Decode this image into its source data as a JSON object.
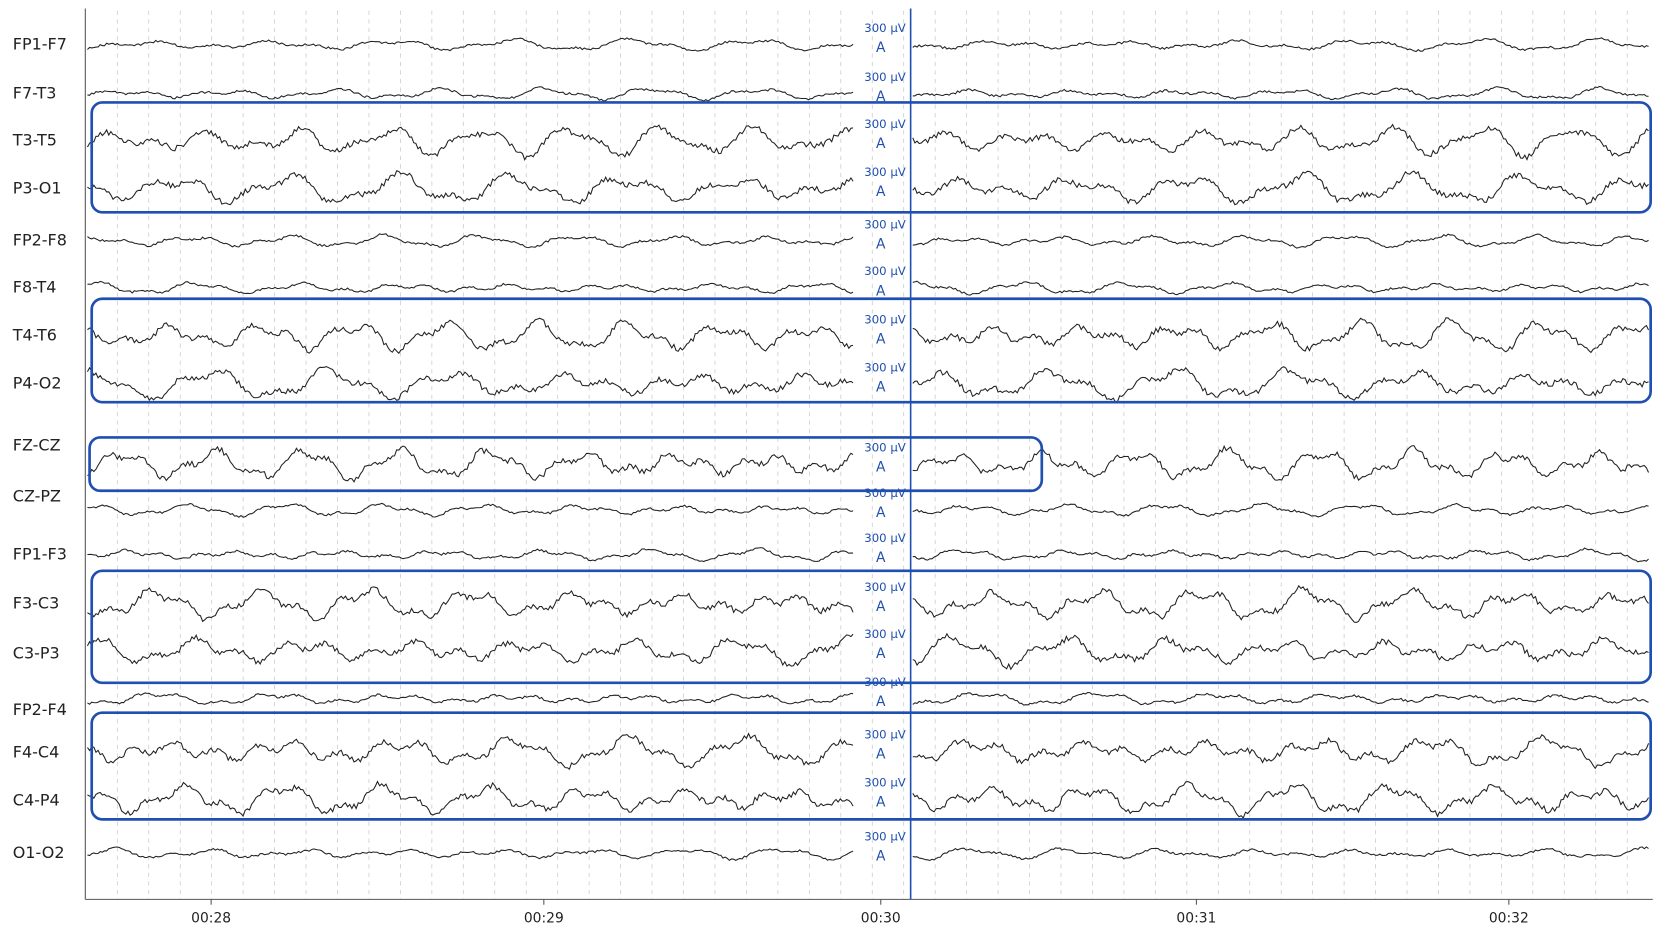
{
  "channels": [
    "FP1-F7",
    "F7-T3",
    "T3-T5",
    "P3-O1",
    "FP2-F8",
    "F8-T4",
    "T4-T6",
    "P4-O2",
    "FZ-CZ",
    "CZ-PZ",
    "FP1-F3",
    "F3-C3",
    "C3-P3",
    "FP2-F4",
    "F4-C4",
    "C4-P4",
    "O1-O2"
  ],
  "scale_label": "300 µV",
  "marker_label": "A",
  "time_axis": [
    "00:28",
    "00:29",
    "00:30",
    "00:31",
    "00:32"
  ]
}
